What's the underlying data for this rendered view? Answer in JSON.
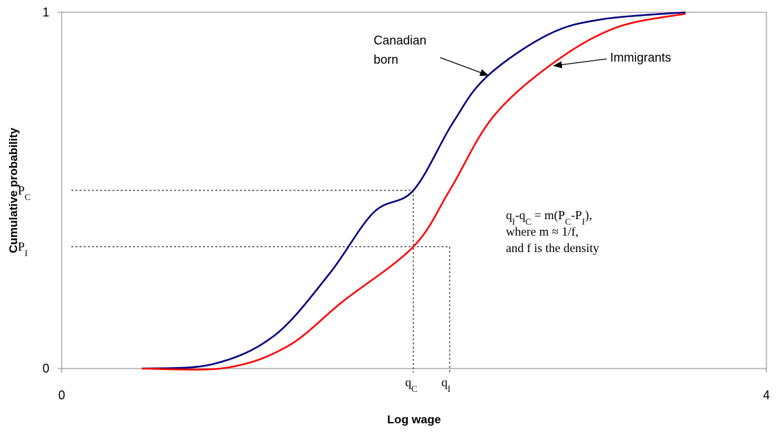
{
  "chart_data": {
    "type": "line",
    "xlabel": "Log wage",
    "ylabel": "Cumulative probability",
    "xlim": [
      0,
      4
    ],
    "xticks": [
      0,
      4
    ],
    "ylim": [
      0,
      1
    ],
    "yticks": [
      0,
      1
    ],
    "series": [
      {
        "name": "Canadian born",
        "name_lines": [
          "Canadian",
          "born"
        ],
        "color": "#00007f",
        "x": [
          0.455,
          0.856,
          1.206,
          1.518,
          1.77,
          1.996,
          2.218,
          2.412,
          2.763,
          3.074,
          3.541
        ],
        "values": [
          0,
          0.012,
          0.092,
          0.265,
          0.438,
          0.5,
          0.688,
          0.819,
          0.938,
          0.981,
          1.0
        ]
      },
      {
        "name": "Immigrants",
        "name_lines": [
          "Immigrants"
        ],
        "color": "#ff0000",
        "x": [
          0.455,
          0.934,
          1.284,
          1.595,
          1.996,
          2.202,
          2.451,
          2.802,
          3.152,
          3.541
        ],
        "values": [
          0,
          0.002,
          0.063,
          0.188,
          0.342,
          0.5,
          0.708,
          0.862,
          0.958,
          0.996
        ]
      }
    ],
    "reference_points": [
      {
        "x": 1.996,
        "y": 0.5,
        "x_label": [
          "q",
          "C"
        ],
        "y_label": [
          "P",
          "C"
        ]
      },
      {
        "x": 2.202,
        "y": 0.342,
        "x_label": [
          "q",
          "I"
        ],
        "y_label": [
          "P",
          "I"
        ]
      }
    ],
    "annotation_lines": [
      [
        "q",
        "I",
        "-q",
        "C",
        " = m(P",
        "C",
        "-P",
        "I",
        "),"
      ],
      [
        "where m ≈ 1/f,"
      ],
      [
        "and f is the density"
      ]
    ]
  }
}
